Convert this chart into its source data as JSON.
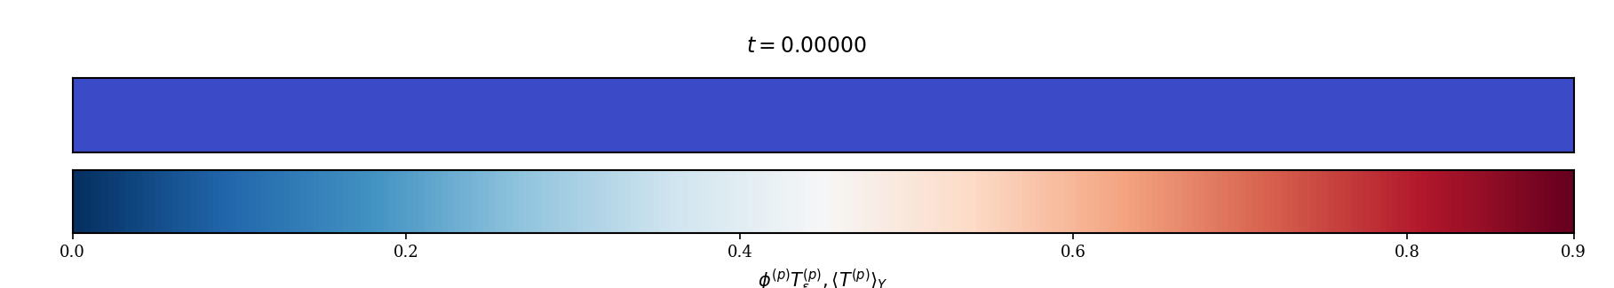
{
  "title": "$t = 0.00000$",
  "title_fontsize": 17,
  "colorbar_label": "$\\phi^{(p)}T^{(p)}_{\\epsilon}, \\langle T^{(p)}\\rangle_Y$",
  "colorbar_label_fontsize": 15,
  "vmin": 0.0,
  "vmax": 0.9,
  "ticks": [
    0.0,
    0.2,
    0.4,
    0.6,
    0.8,
    0.9
  ],
  "tick_labels": [
    "0.0",
    "0.2",
    "0.4",
    "0.6",
    "0.8",
    "0.9"
  ],
  "cmap_name": "RdBu_r",
  "solid_blue_color": "#3B4BC8",
  "background_color": "#ffffff",
  "figsize": [
    18.17,
    3.25
  ],
  "dpi": 100
}
